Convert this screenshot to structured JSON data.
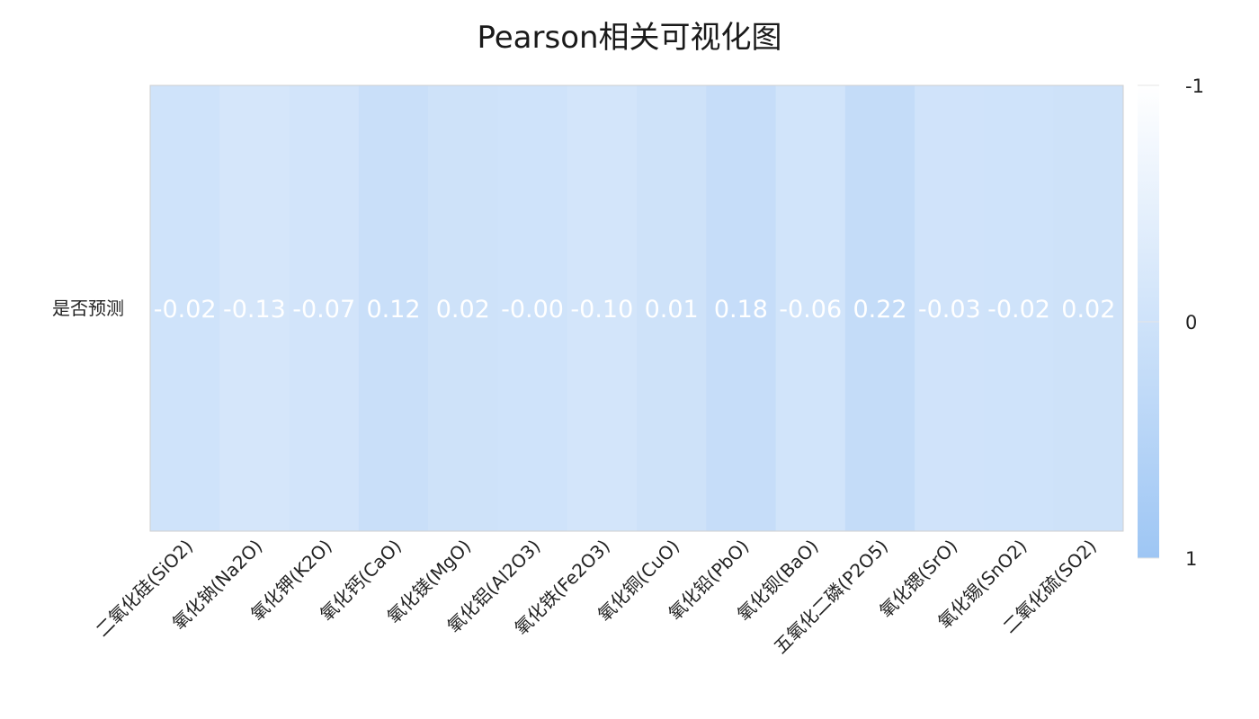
{
  "chart_data": {
    "type": "heatmap",
    "title": "Pearson相关可视化图",
    "rows": [
      "是否预测"
    ],
    "columns": [
      "二氧化硅(SiO2)",
      "氧化钠(Na2O)",
      "氧化钾(K2O)",
      "氧化钙(CaO)",
      "氧化镁(MgO)",
      "氧化铝(Al2O3)",
      "氧化铁(Fe2O3)",
      "氧化铜(CuO)",
      "氧化铅(PbO)",
      "氧化钡(BaO)",
      "五氧化二磷(P2O5)",
      "氧化锶(SrO)",
      "氧化锡(SnO2)",
      "二氧化硫(SO2)"
    ],
    "values": [
      [
        -0.02,
        -0.13,
        -0.07,
        0.12,
        0.02,
        -0.0,
        -0.1,
        0.01,
        0.18,
        -0.06,
        0.22,
        -0.03,
        -0.02,
        0.02
      ]
    ],
    "value_labels": [
      "-0.02",
      "-0.13",
      "-0.07",
      "0.12",
      "0.02",
      "-0.00",
      "-0.10",
      "0.01",
      "0.18",
      "-0.06",
      "0.22",
      "-0.03",
      "-0.02",
      "0.02"
    ],
    "colorbar": {
      "range": [
        -1,
        1
      ],
      "tick_labels": [
        "-1",
        "0",
        "1"
      ],
      "colors": [
        "#ffffff",
        "#9ec6f4"
      ]
    },
    "grid": false
  }
}
